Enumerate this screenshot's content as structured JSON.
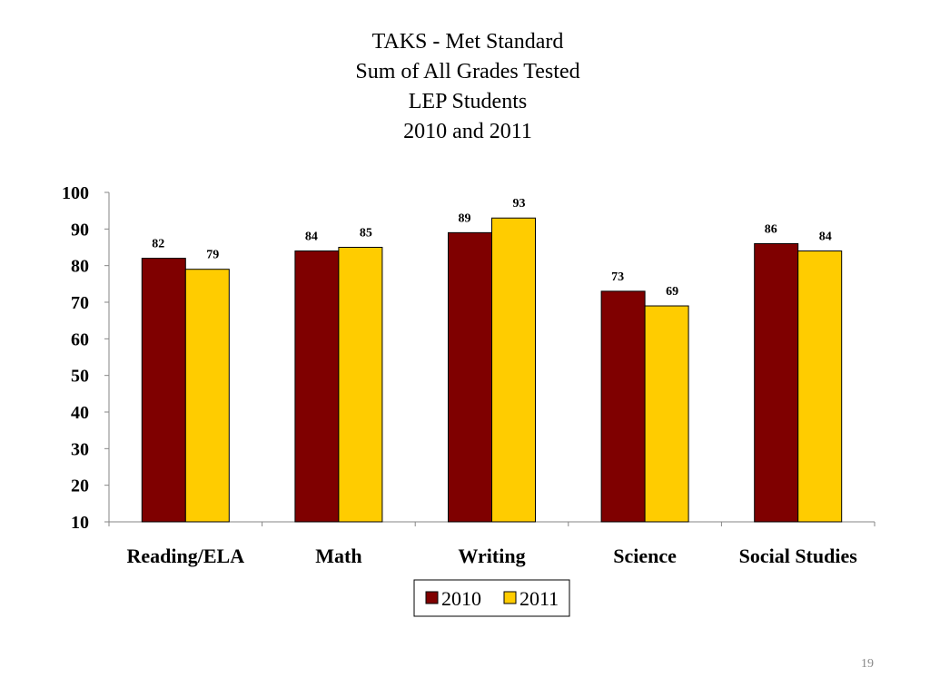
{
  "slide": {
    "title_lines": [
      "TAKS - Met Standard",
      "Sum of All Grades Tested",
      "LEP Students",
      "2010 and 2011"
    ],
    "page_number": "19"
  },
  "chart_data": {
    "type": "bar",
    "title": "TAKS - Met Standard Sum of All Grades Tested LEP Students 2010 and 2011",
    "categories": [
      "Reading/ELA",
      "Math",
      "Writing",
      "Science",
      "Social Studies"
    ],
    "series": [
      {
        "name": "2010",
        "values": [
          82,
          84,
          89,
          73,
          86
        ],
        "color": "#7F0000"
      },
      {
        "name": "2011",
        "values": [
          79,
          85,
          93,
          69,
          84
        ],
        "color": "#FFCC00"
      }
    ],
    "ylim": [
      10,
      100
    ],
    "yticks": [
      100,
      90,
      80,
      70,
      60,
      50,
      40,
      30,
      20,
      10
    ],
    "grid": false,
    "legend": "bottom",
    "data_labels": true
  }
}
